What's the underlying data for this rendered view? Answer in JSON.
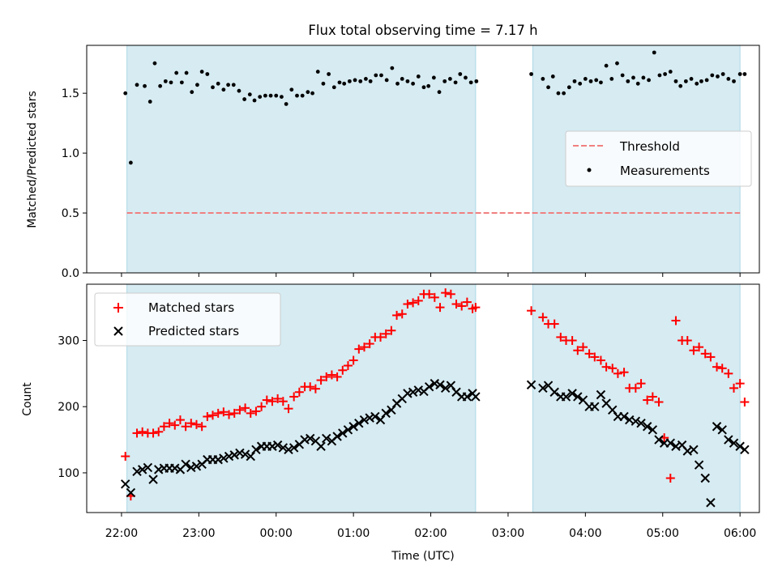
{
  "figure_title": "Flux total observing time = 7.17 h",
  "x_axis_label": "Time (UTC)",
  "x_tick_labels": [
    "22:00",
    "23:00",
    "00:00",
    "01:00",
    "02:00",
    "03:00",
    "04:00",
    "05:00",
    "06:00"
  ],
  "colors": {
    "shade": "#add8e6",
    "threshold": "#f08080",
    "measurements": "#000000",
    "matched": "#ff0000",
    "predicted": "#000000"
  },
  "chart_data": [
    {
      "type": "scatter",
      "ylabel": "Matched/Predicted stars",
      "ylim": [
        0,
        1.9
      ],
      "y_ticks": [
        0.0,
        0.5,
        1.0,
        1.5
      ],
      "y_tick_labels": [
        "0.0",
        "0.5",
        "1.0",
        "1.5"
      ],
      "xlim_hours_from_2200": [
        -0.45,
        8.25
      ],
      "legend": {
        "placement": "center-right",
        "entries": [
          "Threshold",
          "Measurements"
        ]
      },
      "observing_windows_hours_from_2200": [
        [
          0.07,
          4.58
        ],
        [
          5.32,
          8.0
        ]
      ],
      "threshold": {
        "name": "Threshold",
        "value": 0.5,
        "style": "dashed"
      },
      "series": [
        {
          "name": "Measurements",
          "x_hours_from_2200": [
            0.05,
            0.12,
            0.2,
            0.3,
            0.37,
            0.43,
            0.5,
            0.57,
            0.64,
            0.71,
            0.78,
            0.84,
            0.91,
            0.98,
            1.04,
            1.11,
            1.18,
            1.25,
            1.32,
            1.38,
            1.45,
            1.52,
            1.59,
            1.66,
            1.72,
            1.79,
            1.86,
            1.93,
            2.0,
            2.07,
            2.13,
            2.2,
            2.27,
            2.34,
            2.41,
            2.47,
            2.54,
            2.61,
            2.68,
            2.75,
            2.82,
            2.88,
            2.95,
            3.02,
            3.09,
            3.16,
            3.22,
            3.29,
            3.36,
            3.43,
            3.5,
            3.57,
            3.63,
            3.7,
            3.77,
            3.84,
            3.91,
            3.97,
            4.04,
            4.11,
            4.18,
            4.25,
            4.32,
            4.38,
            4.45,
            4.52,
            4.59,
            5.3,
            5.45,
            5.52,
            5.58,
            5.65,
            5.72,
            5.79,
            5.86,
            5.93,
            6.0,
            6.07,
            6.14,
            6.2,
            6.27,
            6.34,
            6.41,
            6.48,
            6.55,
            6.62,
            6.68,
            6.75,
            6.82,
            6.89,
            6.96,
            7.03,
            7.1,
            7.17,
            7.23,
            7.3,
            7.37,
            7.44,
            7.5,
            7.57,
            7.64,
            7.71,
            7.78,
            7.85,
            7.92,
            8.0,
            8.06
          ],
          "y": [
            1.5,
            0.92,
            1.57,
            1.56,
            1.43,
            1.75,
            1.56,
            1.6,
            1.59,
            1.67,
            1.59,
            1.67,
            1.51,
            1.57,
            1.68,
            1.66,
            1.55,
            1.58,
            1.53,
            1.57,
            1.57,
            1.52,
            1.45,
            1.49,
            1.44,
            1.47,
            1.48,
            1.48,
            1.48,
            1.47,
            1.41,
            1.53,
            1.48,
            1.48,
            1.51,
            1.5,
            1.68,
            1.58,
            1.66,
            1.55,
            1.59,
            1.58,
            1.6,
            1.61,
            1.6,
            1.62,
            1.6,
            1.65,
            1.65,
            1.61,
            1.71,
            1.58,
            1.62,
            1.6,
            1.58,
            1.64,
            1.55,
            1.56,
            1.63,
            1.51,
            1.6,
            1.62,
            1.59,
            1.66,
            1.63,
            1.59,
            1.6,
            1.66,
            1.62,
            1.55,
            1.64,
            1.5,
            1.5,
            1.55,
            1.6,
            1.58,
            1.62,
            1.6,
            1.61,
            1.59,
            1.73,
            1.62,
            1.75,
            1.65,
            1.6,
            1.63,
            1.58,
            1.63,
            1.61,
            1.84,
            1.65,
            1.66,
            1.68,
            1.6,
            1.56,
            1.6,
            1.62,
            1.58,
            1.6,
            1.61,
            1.65,
            1.64,
            1.66,
            1.62,
            1.6,
            1.66,
            1.66
          ]
        }
      ]
    },
    {
      "type": "scatter",
      "ylabel": "Count",
      "ylim": [
        40,
        385
      ],
      "y_ticks": [
        100,
        200,
        300
      ],
      "y_tick_labels": [
        "100",
        "200",
        "300"
      ],
      "xlim_hours_from_2200": [
        -0.45,
        8.25
      ],
      "legend": {
        "placement": "top-left",
        "entries": [
          "Matched stars",
          "Predicted stars"
        ]
      },
      "observing_windows_hours_from_2200": [
        [
          0.07,
          4.58
        ],
        [
          5.32,
          8.0
        ]
      ],
      "series": [
        {
          "name": "Matched stars",
          "marker": "+",
          "x_hours_from_2200": [
            0.05,
            0.12,
            0.2,
            0.27,
            0.34,
            0.41,
            0.48,
            0.55,
            0.62,
            0.69,
            0.76,
            0.83,
            0.9,
            0.97,
            1.04,
            1.11,
            1.18,
            1.25,
            1.32,
            1.39,
            1.46,
            1.53,
            1.6,
            1.67,
            1.74,
            1.81,
            1.88,
            1.95,
            2.02,
            2.09,
            2.16,
            2.23,
            2.3,
            2.37,
            2.44,
            2.51,
            2.58,
            2.65,
            2.72,
            2.79,
            2.86,
            2.93,
            3.0,
            3.07,
            3.14,
            3.21,
            3.28,
            3.35,
            3.42,
            3.49,
            3.56,
            3.63,
            3.7,
            3.77,
            3.84,
            3.91,
            3.98,
            4.05,
            4.12,
            4.19,
            4.26,
            4.33,
            4.4,
            4.47,
            4.54,
            4.58,
            5.3,
            5.45,
            5.52,
            5.6,
            5.68,
            5.75,
            5.83,
            5.9,
            5.97,
            6.05,
            6.12,
            6.2,
            6.27,
            6.35,
            6.42,
            6.5,
            6.57,
            6.65,
            6.72,
            6.8,
            6.87,
            6.95,
            7.02,
            7.1,
            7.17,
            7.25,
            7.32,
            7.4,
            7.47,
            7.55,
            7.62,
            7.7,
            7.77,
            7.85,
            7.92,
            8.0,
            8.06
          ],
          "y": [
            125,
            65,
            160,
            162,
            160,
            160,
            162,
            170,
            175,
            172,
            180,
            170,
            175,
            173,
            170,
            185,
            187,
            190,
            192,
            188,
            190,
            195,
            198,
            190,
            193,
            200,
            210,
            208,
            212,
            208,
            197,
            215,
            222,
            230,
            230,
            227,
            240,
            245,
            248,
            245,
            255,
            262,
            270,
            287,
            290,
            295,
            305,
            305,
            310,
            315,
            338,
            340,
            355,
            357,
            360,
            370,
            370,
            365,
            350,
            372,
            370,
            355,
            352,
            358,
            348,
            350,
            345,
            335,
            325,
            325,
            305,
            300,
            300,
            285,
            290,
            280,
            275,
            270,
            260,
            258,
            250,
            252,
            228,
            228,
            235,
            210,
            215,
            207,
            153,
            92,
            330,
            300,
            300,
            285,
            290,
            280,
            275,
            260,
            258,
            250,
            228,
            235,
            207
          ]
        },
        {
          "name": "Predicted stars",
          "marker": "x",
          "x_hours_from_2200": [
            0.05,
            0.12,
            0.2,
            0.27,
            0.34,
            0.41,
            0.48,
            0.55,
            0.62,
            0.69,
            0.76,
            0.83,
            0.9,
            0.97,
            1.04,
            1.11,
            1.18,
            1.25,
            1.32,
            1.39,
            1.46,
            1.53,
            1.6,
            1.67,
            1.74,
            1.81,
            1.88,
            1.95,
            2.02,
            2.09,
            2.16,
            2.23,
            2.3,
            2.37,
            2.44,
            2.51,
            2.58,
            2.65,
            2.72,
            2.79,
            2.86,
            2.93,
            3.0,
            3.07,
            3.14,
            3.21,
            3.28,
            3.35,
            3.42,
            3.49,
            3.56,
            3.63,
            3.7,
            3.77,
            3.84,
            3.91,
            3.98,
            4.05,
            4.12,
            4.19,
            4.26,
            4.33,
            4.4,
            4.47,
            4.54,
            4.58,
            5.3,
            5.45,
            5.52,
            5.6,
            5.68,
            5.75,
            5.83,
            5.9,
            5.97,
            6.05,
            6.12,
            6.2,
            6.27,
            6.35,
            6.42,
            6.5,
            6.57,
            6.65,
            6.72,
            6.8,
            6.87,
            6.95,
            7.02,
            7.1,
            7.17,
            7.25,
            7.32,
            7.4,
            7.47,
            7.55,
            7.62,
            7.7,
            7.77,
            7.85,
            7.92,
            8.0,
            8.06
          ],
          "y": [
            83,
            70,
            102,
            105,
            108,
            90,
            105,
            107,
            107,
            107,
            105,
            113,
            108,
            110,
            113,
            120,
            120,
            120,
            122,
            125,
            127,
            130,
            128,
            125,
            135,
            140,
            140,
            140,
            142,
            138,
            135,
            138,
            143,
            150,
            152,
            148,
            140,
            152,
            148,
            155,
            160,
            165,
            170,
            175,
            180,
            183,
            185,
            180,
            190,
            195,
            205,
            212,
            220,
            222,
            225,
            223,
            230,
            235,
            233,
            228,
            232,
            222,
            215,
            215,
            220,
            215,
            233,
            228,
            232,
            222,
            215,
            215,
            220,
            215,
            210,
            200,
            200,
            218,
            205,
            195,
            185,
            185,
            180,
            178,
            175,
            170,
            165,
            150,
            145,
            145,
            140,
            142,
            133,
            135,
            112,
            92,
            55,
            170,
            165,
            150,
            145,
            140,
            135
          ]
        }
      ]
    }
  ]
}
